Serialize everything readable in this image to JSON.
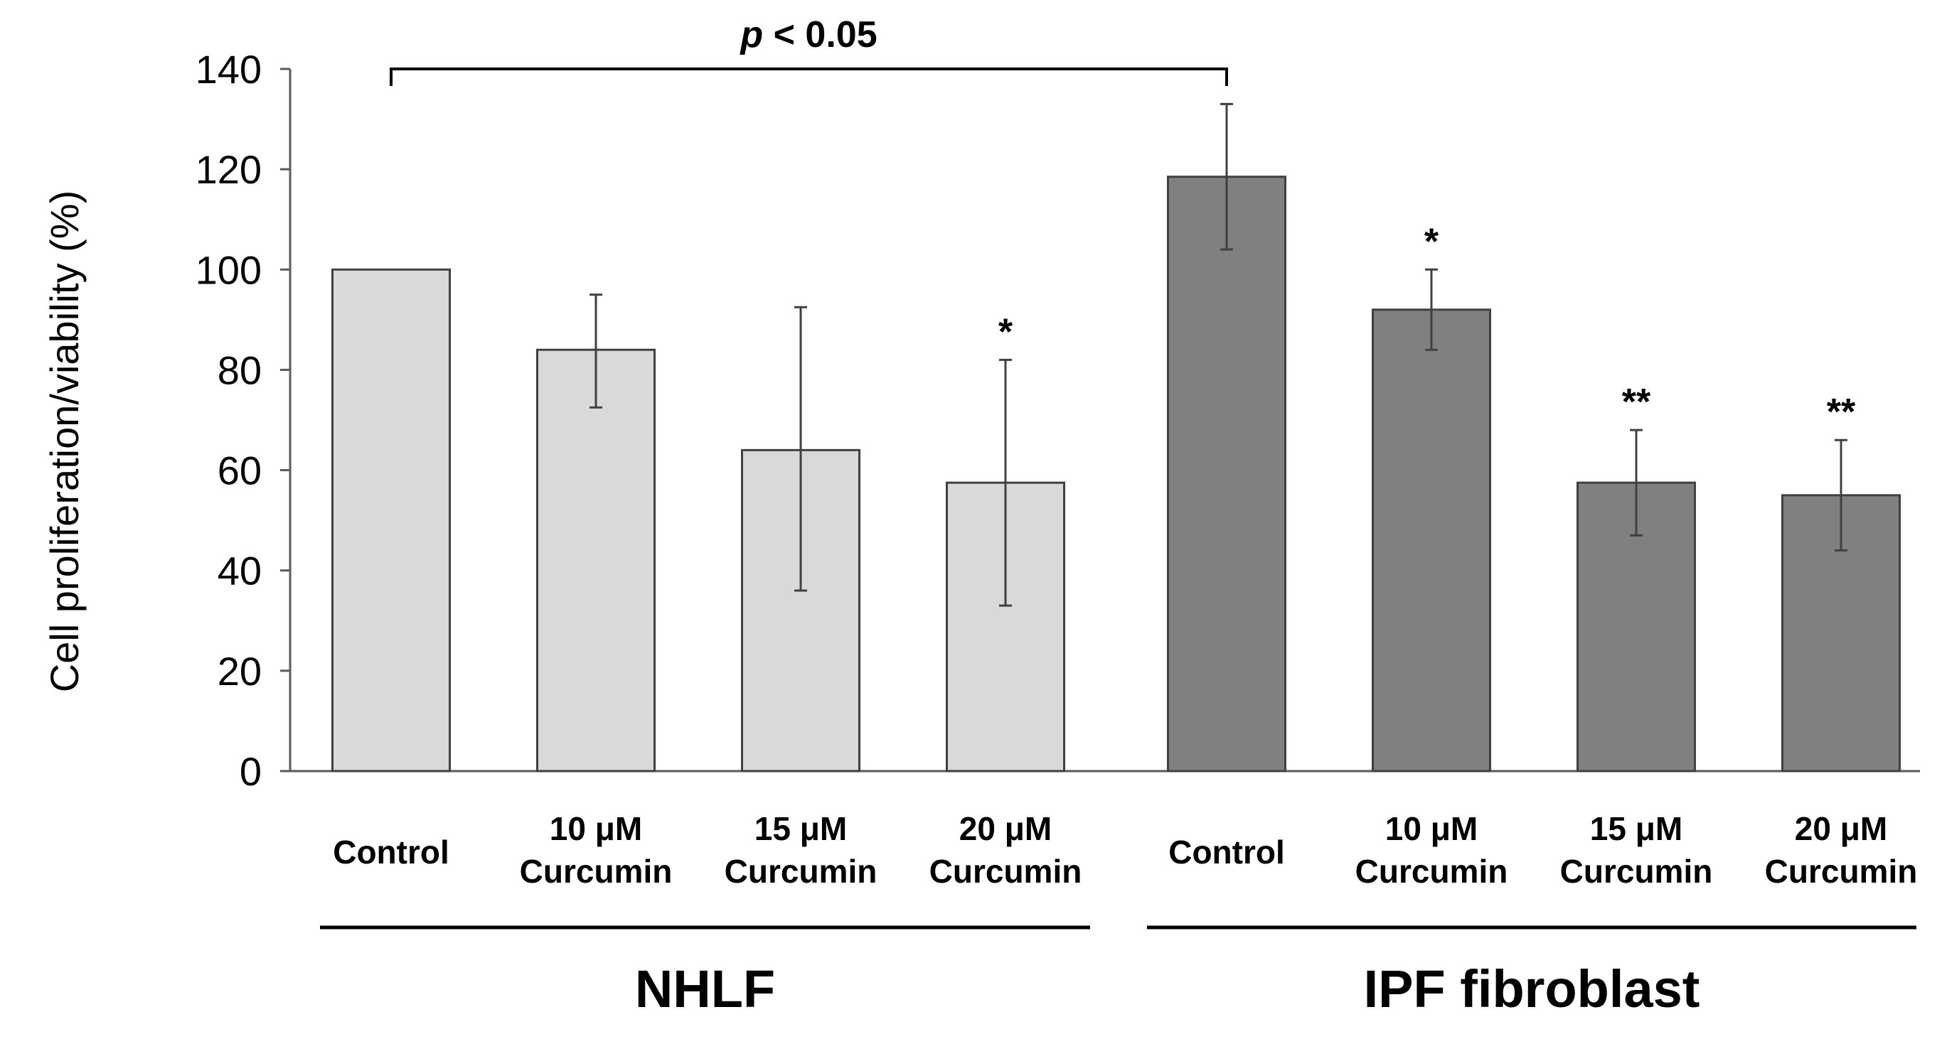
{
  "chart_data": {
    "type": "bar",
    "ylabel": "Cell proliferation/viability (%)",
    "ylim": [
      0,
      140
    ],
    "yticks": [
      0,
      20,
      40,
      60,
      80,
      100,
      120,
      140
    ],
    "grid": false,
    "groups": [
      {
        "name": "NHLF",
        "color": "#d9d9d9"
      },
      {
        "name": "IPF fibroblast",
        "color": "#808080"
      }
    ],
    "bars": [
      {
        "group": 0,
        "label": [
          "Control"
        ],
        "value": 100,
        "error_low": 100,
        "error_high": 100,
        "sig": ""
      },
      {
        "group": 0,
        "label": [
          "10 μM",
          "Curcumin"
        ],
        "value": 84,
        "error_low": 72.5,
        "error_high": 95,
        "sig": ""
      },
      {
        "group": 0,
        "label": [
          "15 μM",
          "Curcumin"
        ],
        "value": 64,
        "error_low": 36,
        "error_high": 92.5,
        "sig": ""
      },
      {
        "group": 0,
        "label": [
          "20 μM",
          "Curcumin"
        ],
        "value": 57.5,
        "error_low": 33,
        "error_high": 82,
        "sig": "*"
      },
      {
        "group": 1,
        "label": [
          "Control"
        ],
        "value": 118.5,
        "error_low": 104,
        "error_high": 133,
        "sig": ""
      },
      {
        "group": 1,
        "label": [
          "10 μM",
          "Curcumin"
        ],
        "value": 92,
        "error_low": 84,
        "error_high": 100,
        "sig": "*"
      },
      {
        "group": 1,
        "label": [
          "15 μM",
          "Curcumin"
        ],
        "value": 57.5,
        "error_low": 47,
        "error_high": 68,
        "sig": "**"
      },
      {
        "group": 1,
        "label": [
          "20 μM",
          "Curcumin"
        ],
        "value": 55,
        "error_low": 44,
        "error_high": 66,
        "sig": "**"
      }
    ],
    "comparison": {
      "from_bar": 0,
      "to_bar": 4,
      "text_italic": "p",
      "text_rest": " < 0.05"
    }
  }
}
